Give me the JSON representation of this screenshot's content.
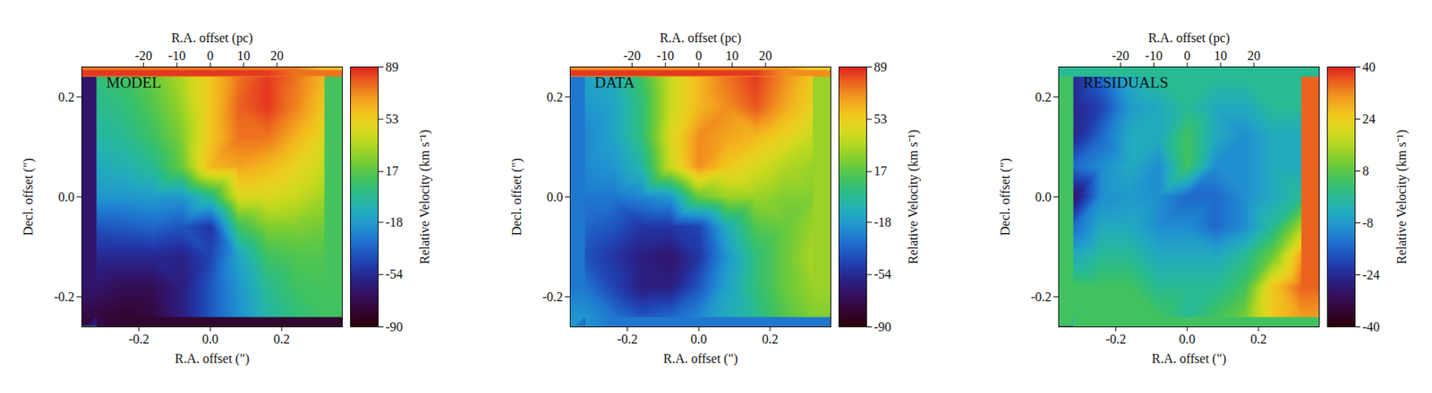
{
  "chart_data": [
    {
      "type": "heatmap",
      "title": "MODEL",
      "xlabel": "R.A. offset (\")",
      "ylabel": "Decl. offset (\")",
      "x2label": "R.A. offset (pc)",
      "xlim": [
        -0.36,
        0.37
      ],
      "ylim": [
        -0.26,
        0.26
      ],
      "x2lim": [
        -38.5,
        39.6
      ],
      "xticks": [
        {
          "value": -0.2,
          "label": "-0.2"
        },
        {
          "value": 0,
          "label": "0.0"
        },
        {
          "value": 0.2,
          "label": "0.2"
        }
      ],
      "yticks": [
        {
          "value": -0.2,
          "label": "-0.2"
        },
        {
          "value": 0,
          "label": "0.0"
        },
        {
          "value": 0.2,
          "label": "0.2"
        }
      ],
      "x2ticks": [
        -20,
        -10,
        0,
        10,
        20
      ],
      "x": [
        -0.32,
        -0.24,
        -0.16,
        -0.08,
        0,
        0.08,
        0.16,
        0.24,
        0.32
      ],
      "y": [
        0.24,
        0.18,
        0.12,
        0.06,
        0,
        -0.06,
        -0.12,
        -0.18,
        -0.24
      ],
      "values": [
        [
          5,
          10,
          20,
          35,
          55,
          75,
          85,
          75,
          60
        ],
        [
          0,
          5,
          15,
          30,
          55,
          78,
          85,
          72,
          55
        ],
        [
          -5,
          0,
          10,
          25,
          55,
          75,
          75,
          62,
          48
        ],
        [
          -12,
          -8,
          0,
          20,
          60,
          65,
          60,
          50,
          40
        ],
        [
          -20,
          -20,
          -18,
          -20,
          0,
          45,
          45,
          40,
          32
        ],
        [
          -40,
          -38,
          -35,
          -40,
          -50,
          10,
          25,
          25,
          22
        ],
        [
          -55,
          -55,
          -55,
          -58,
          -45,
          -15,
          10,
          15,
          15
        ],
        [
          -65,
          -70,
          -70,
          -60,
          -40,
          -20,
          0,
          10,
          12
        ],
        [
          -75,
          -80,
          -75,
          -60,
          -40,
          -22,
          -5,
          5,
          10
        ]
      ],
      "colorbar": {
        "label": "Relative Velocity (km s⁻¹)",
        "lim": [
          -90,
          89
        ],
        "ticks": [
          -90,
          -54,
          -18,
          17,
          53,
          89
        ]
      }
    },
    {
      "type": "heatmap",
      "title": "DATA",
      "xlabel": "R.A. offset (\")",
      "ylabel": "Decl. offset (\")",
      "x2label": "R.A. offset (pc)",
      "xlim": [
        -0.36,
        0.37
      ],
      "ylim": [
        -0.26,
        0.26
      ],
      "x2lim": [
        -38.5,
        39.6
      ],
      "xticks": [
        {
          "value": -0.2,
          "label": "-0.2"
        },
        {
          "value": 0,
          "label": "0.0"
        },
        {
          "value": 0.2,
          "label": "0.2"
        }
      ],
      "yticks": [
        {
          "value": -0.2,
          "label": "-0.2"
        },
        {
          "value": 0,
          "label": "0.0"
        },
        {
          "value": 0.2,
          "label": "0.2"
        }
      ],
      "x2ticks": [
        -20,
        -10,
        0,
        10,
        20
      ],
      "x": [
        -0.32,
        -0.24,
        -0.16,
        -0.08,
        0,
        0.08,
        0.16,
        0.24,
        0.32
      ],
      "y": [
        0.24,
        0.18,
        0.12,
        0.06,
        0,
        -0.06,
        -0.12,
        -0.18,
        -0.24
      ],
      "values": [
        [
          -15,
          -10,
          10,
          40,
          60,
          75,
          85,
          70,
          55
        ],
        [
          -20,
          -15,
          5,
          40,
          60,
          70,
          80,
          65,
          50
        ],
        [
          -25,
          -15,
          5,
          45,
          70,
          65,
          60,
          50,
          40
        ],
        [
          -25,
          -20,
          -5,
          40,
          70,
          55,
          45,
          35,
          30
        ],
        [
          -30,
          -30,
          -25,
          -20,
          20,
          30,
          30,
          25,
          25
        ],
        [
          -35,
          -40,
          -50,
          -50,
          -45,
          -10,
          15,
          20,
          30
        ],
        [
          -40,
          -50,
          -60,
          -65,
          -50,
          -20,
          5,
          20,
          35
        ],
        [
          -30,
          -45,
          -60,
          -60,
          -40,
          -15,
          5,
          20,
          30
        ],
        [
          -20,
          -30,
          -40,
          -35,
          -25,
          -10,
          0,
          15,
          25
        ]
      ],
      "colorbar": {
        "label": "Relative Velocity (km s⁻¹)",
        "lim": [
          -90,
          89
        ],
        "ticks": [
          -90,
          -54,
          -18,
          17,
          53,
          89
        ]
      }
    },
    {
      "type": "heatmap",
      "title": "RESIDUALS",
      "xlabel": "R.A. offset (\")",
      "ylabel": "Decl. offset (\")",
      "x2label": "R.A. offset (pc)",
      "xlim": [
        -0.36,
        0.37
      ],
      "ylim": [
        -0.26,
        0.26
      ],
      "x2lim": [
        -38.5,
        39.6
      ],
      "xticks": [
        {
          "value": -0.2,
          "label": "-0.2"
        },
        {
          "value": 0,
          "label": "0.0"
        },
        {
          "value": 0.2,
          "label": "0.2"
        }
      ],
      "yticks": [
        {
          "value": -0.2,
          "label": "-0.2"
        },
        {
          "value": 0,
          "label": "0.0"
        },
        {
          "value": 0.2,
          "label": "0.2"
        }
      ],
      "x2ticks": [
        -20,
        -10,
        0,
        10,
        20
      ],
      "x": [
        -0.32,
        -0.24,
        -0.16,
        -0.08,
        0,
        0.08,
        0.16,
        0.24,
        0.32
      ],
      "y": [
        0.24,
        0.18,
        0.12,
        0.06,
        0,
        -0.06,
        -0.12,
        -0.18,
        -0.24
      ],
      "values": [
        [
          -25,
          -15,
          -5,
          0,
          0,
          0,
          0,
          0,
          0
        ],
        [
          -25,
          -20,
          -8,
          -5,
          0,
          -5,
          -5,
          0,
          0
        ],
        [
          -25,
          -15,
          -5,
          -5,
          5,
          -5,
          -10,
          -5,
          -5
        ],
        [
          -15,
          -10,
          -5,
          -10,
          5,
          -10,
          -10,
          -5,
          -5
        ],
        [
          -30,
          -10,
          -8,
          -10,
          -15,
          -15,
          -10,
          -5,
          0
        ],
        [
          -15,
          -5,
          -5,
          -10,
          -10,
          -15,
          -10,
          0,
          15
        ],
        [
          -5,
          0,
          0,
          -5,
          -5,
          -5,
          0,
          10,
          30
        ],
        [
          5,
          5,
          5,
          0,
          0,
          0,
          5,
          25,
          35
        ],
        [
          5,
          5,
          5,
          5,
          0,
          5,
          10,
          25,
          30
        ]
      ],
      "colorbar": {
        "label": "Relative Velocity (km s⁻¹)",
        "lim": [
          -40,
          40
        ],
        "ticks": [
          -40,
          -24,
          -8,
          8,
          24,
          40
        ]
      }
    }
  ]
}
